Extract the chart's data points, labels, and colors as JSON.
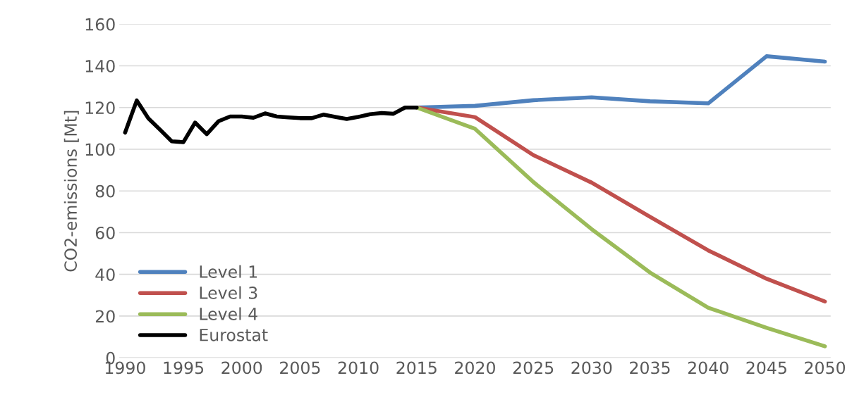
{
  "chart_data": {
    "type": "line",
    "ylabel": "CO2-emissions [Mt]",
    "xlim": [
      1989.5,
      2050.5
    ],
    "xticks": [
      1990,
      1995,
      2000,
      2005,
      2010,
      2015,
      2020,
      2025,
      2030,
      2035,
      2040,
      2045,
      2050
    ],
    "ylim": [
      0,
      160
    ],
    "yticks": [
      0,
      20,
      40,
      60,
      80,
      100,
      120,
      140,
      160
    ],
    "grid": "y",
    "legend": "bottom left",
    "marker": "none",
    "line_style": "solid",
    "series": [
      {
        "name": "Level 1",
        "color": "#4f81bd",
        "x": [
          2015,
          2020,
          2025,
          2030,
          2035,
          2040,
          2045,
          2050
        ],
        "values": [
          120,
          120.8,
          123.5,
          124.9,
          123,
          122,
          144.6,
          142
        ]
      },
      {
        "name": "Level 3",
        "color": "#c0504d",
        "x": [
          2015,
          2020,
          2025,
          2030,
          2035,
          2040,
          2045,
          2050
        ],
        "values": [
          120,
          115.4,
          97.2,
          84,
          67.6,
          51.5,
          37.9,
          27
        ]
      },
      {
        "name": "Level 4",
        "color": "#9bbb59",
        "x": [
          2015,
          2020,
          2025,
          2030,
          2035,
          2040,
          2045,
          2050
        ],
        "values": [
          120,
          109.8,
          84.3,
          61.7,
          40.9,
          24,
          14.4,
          5.5
        ]
      },
      {
        "name": "Eurostat",
        "color": "#000000",
        "x": [
          1990,
          1991,
          1992,
          1993,
          1994,
          1995,
          1996,
          1997,
          1998,
          1999,
          2000,
          2001,
          2002,
          2003,
          2004,
          2005,
          2006,
          2007,
          2008,
          2009,
          2010,
          2011,
          2012,
          2013,
          2014,
          2015
        ],
        "values": [
          108,
          123.4,
          114.8,
          109.4,
          103.8,
          103.4,
          112.8,
          107.2,
          113.4,
          115.7,
          115.7,
          115.1,
          117.2,
          115.7,
          115.3,
          114.9,
          114.9,
          116.6,
          115.5,
          114.5,
          115.5,
          116.8,
          117.4,
          117,
          120,
          120
        ]
      }
    ]
  }
}
